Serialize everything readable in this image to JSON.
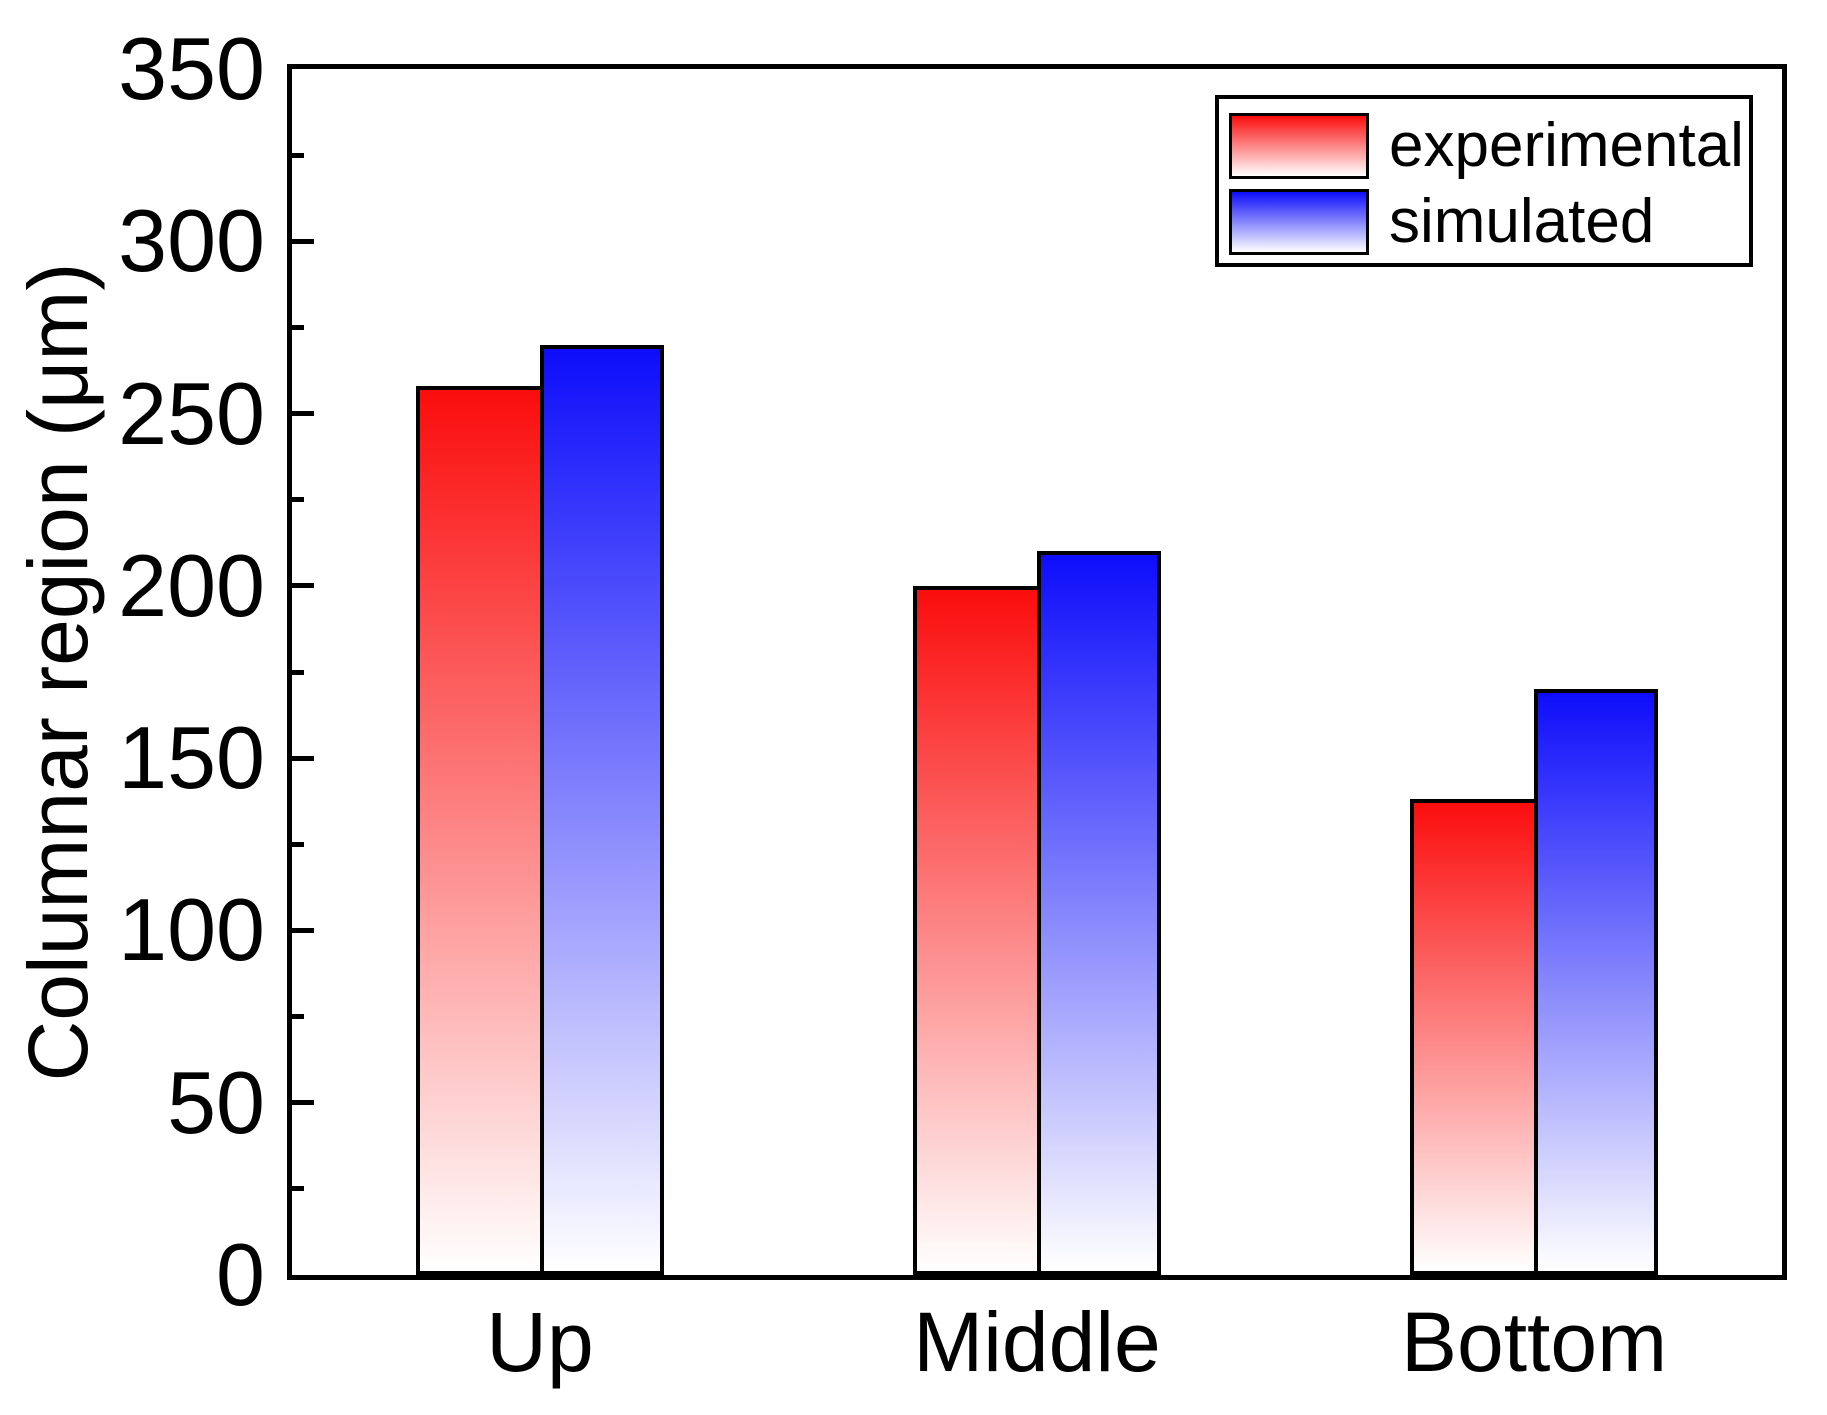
{
  "chart_data": {
    "type": "bar",
    "categories": [
      "Up",
      "Middle",
      "Bottom"
    ],
    "series": [
      {
        "name": "experimental",
        "values": [
          258,
          200,
          138
        ],
        "color_top": "#fb0d0d",
        "color_bottom": "#ffffff"
      },
      {
        "name": "simulated",
        "values": [
          270,
          210,
          170
        ],
        "color_top": "#0d0dfb",
        "color_bottom": "#ffffff"
      }
    ],
    "title": "",
    "xlabel": "",
    "ylabel": "Columnar region (μm)",
    "ylim": [
      0,
      350
    ],
    "ytick_interval": 50,
    "yminor_interval": 25,
    "ytick_labels": [
      "0",
      "50",
      "100",
      "150",
      "200",
      "250",
      "300",
      "350"
    ],
    "grid": false,
    "legend_position": "top-right-inside",
    "axis_color": "#000000",
    "background": "#ffffff"
  }
}
